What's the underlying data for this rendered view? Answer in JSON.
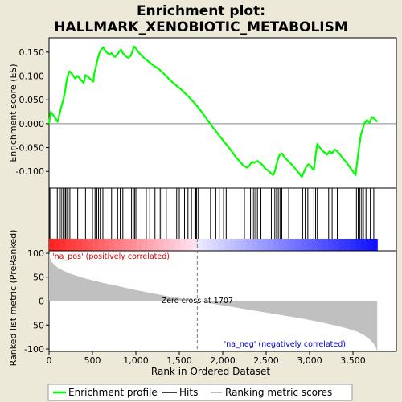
{
  "chart_data": {
    "type": "line",
    "title": "Enrichment plot:",
    "subtitle": "HALLMARK_XENOBIOTIC_METABOLISM",
    "xlabel": "Rank in Ordered Dataset",
    "top_panel": {
      "ylabel": "Enrichment score (ES)",
      "ylim": [
        -0.135,
        0.18
      ],
      "yticks": [
        -0.1,
        -0.05,
        0.0,
        0.05,
        0.1,
        0.15
      ],
      "ytick_labels": [
        "-0.100",
        "-0.050",
        "0.000",
        "0.050",
        "0.100",
        "0.150"
      ],
      "series": [
        {
          "name": "Enrichment profile",
          "color": "#00ff00",
          "x": [
            0,
            20,
            60,
            100,
            120,
            140,
            165,
            185,
            200,
            215,
            235,
            260,
            300,
            330,
            360,
            400,
            420,
            450,
            480,
            510,
            520,
            535,
            550,
            565,
            580,
            600,
            625,
            650,
            690,
            720,
            740,
            760,
            790,
            810,
            830,
            850,
            880,
            910,
            940,
            960,
            980,
            1000,
            1020,
            1040,
            1080,
            1120,
            1160,
            1200,
            1240,
            1280,
            1320,
            1360,
            1400,
            1440,
            1480,
            1520,
            1560,
            1600,
            1640,
            1680,
            1720,
            1760,
            1800,
            1840,
            1880,
            1920,
            1960,
            2000,
            2040,
            2080,
            2120,
            2160,
            2200,
            2240,
            2280,
            2300,
            2320,
            2340,
            2360,
            2380,
            2400,
            2430,
            2460,
            2490,
            2520,
            2550,
            2580,
            2600,
            2620,
            2640,
            2660,
            2680,
            2720,
            2760,
            2800,
            2840,
            2880,
            2910,
            2930,
            2950,
            2970,
            2990,
            3010,
            3030,
            3050,
            3070,
            3090,
            3110,
            3140,
            3170,
            3200,
            3230,
            3260,
            3290,
            3320,
            3350,
            3380,
            3420,
            3460,
            3500,
            3530,
            3550,
            3570,
            3590,
            3610,
            3630,
            3660,
            3690,
            3720,
            3750,
            3780
          ],
          "y": [
            0.0,
            0.025,
            0.015,
            0.004,
            0.02,
            0.035,
            0.05,
            0.068,
            0.088,
            0.1,
            0.11,
            0.105,
            0.095,
            0.1,
            0.093,
            0.085,
            0.102,
            0.098,
            0.093,
            0.088,
            0.105,
            0.115,
            0.128,
            0.138,
            0.148,
            0.155,
            0.16,
            0.152,
            0.145,
            0.148,
            0.142,
            0.14,
            0.145,
            0.152,
            0.155,
            0.148,
            0.142,
            0.138,
            0.142,
            0.152,
            0.162,
            0.158,
            0.152,
            0.148,
            0.14,
            0.134,
            0.128,
            0.122,
            0.118,
            0.112,
            0.105,
            0.098,
            0.09,
            0.084,
            0.078,
            0.072,
            0.065,
            0.058,
            0.05,
            0.042,
            0.034,
            0.024,
            0.014,
            0.004,
            -0.006,
            -0.015,
            -0.025,
            -0.034,
            -0.043,
            -0.052,
            -0.062,
            -0.072,
            -0.08,
            -0.088,
            -0.092,
            -0.09,
            -0.084,
            -0.08,
            -0.082,
            -0.08,
            -0.078,
            -0.082,
            -0.087,
            -0.094,
            -0.098,
            -0.103,
            -0.108,
            -0.1,
            -0.085,
            -0.072,
            -0.064,
            -0.062,
            -0.072,
            -0.079,
            -0.087,
            -0.095,
            -0.104,
            -0.112,
            -0.104,
            -0.095,
            -0.088,
            -0.085,
            -0.088,
            -0.093,
            -0.097,
            -0.065,
            -0.042,
            -0.048,
            -0.055,
            -0.06,
            -0.065,
            -0.058,
            -0.062,
            -0.054,
            -0.058,
            -0.064,
            -0.072,
            -0.08,
            -0.09,
            -0.1,
            -0.108,
            -0.078,
            -0.05,
            -0.025,
            -0.012,
            0.0,
            0.008,
            0.002,
            0.014,
            0.01,
            0.004
          ]
        }
      ]
    },
    "hits": {
      "name": "Hits",
      "color": "#000000",
      "x": [
        10,
        95,
        120,
        140,
        160,
        175,
        190,
        205,
        220,
        240,
        330,
        420,
        500,
        530,
        550,
        570,
        590,
        620,
        720,
        790,
        820,
        850,
        950,
        970,
        985,
        1000,
        1120,
        1160,
        1220,
        1280,
        1300,
        1350,
        1440,
        1470,
        1500,
        1560,
        1600,
        1640,
        1680,
        1690,
        1700,
        1720,
        1860,
        1920,
        1960,
        2010,
        2040,
        2250,
        2320,
        2340,
        2360,
        2380,
        2400,
        2440,
        2560,
        2600,
        2620,
        2640,
        2660,
        2680,
        2760,
        2920,
        2950,
        2980,
        3050,
        3070,
        3090,
        3220,
        3260,
        3320,
        3540,
        3560,
        3580,
        3600,
        3620,
        3650,
        3700,
        3740
      ]
    },
    "lower_panel": {
      "ylabel": "Ranked list metric (PreRanked)",
      "ylim": [
        -105,
        105
      ],
      "yticks": [
        -100,
        -50,
        0,
        50,
        100
      ],
      "series": [
        {
          "name": "Ranking metric scores",
          "color": "#c0c0c0",
          "x": [
            0,
            10,
            30,
            60,
            100,
            160,
            250,
            400,
            600,
            800,
            1000,
            1200,
            1400,
            1600,
            1707,
            1900,
            2100,
            2300,
            2500,
            2700,
            2900,
            3100,
            3300,
            3450,
            3550,
            3620,
            3680,
            3720,
            3750,
            3770,
            3780
          ],
          "y": [
            100,
            90,
            82,
            76,
            70,
            64,
            57,
            48,
            39,
            31,
            23,
            16,
            9,
            3,
            0,
            -6,
            -12,
            -18,
            -24,
            -30,
            -36,
            -43,
            -51,
            -58,
            -64,
            -70,
            -78,
            -85,
            -92,
            -100,
            -105
          ]
        }
      ],
      "annotations": [
        {
          "text": "'na_pos' (positively correlated)",
          "color": "#cc0000"
        },
        {
          "text": "Zero cross at 1707",
          "color": "#000000",
          "x": 1707
        },
        {
          "text": "'na_neg' (negatively correlated)",
          "color": "#0000cc"
        }
      ]
    },
    "xlim": [
      0,
      4000
    ],
    "xticks": [
      0,
      500,
      1000,
      1500,
      2000,
      2500,
      3000,
      3500
    ],
    "xtick_labels": [
      "0",
      "500",
      "1,000",
      "1,500",
      "2,000",
      "2,500",
      "3,000",
      "3,500"
    ],
    "list_size": 3780,
    "legend": {
      "placement": "bottom",
      "entries": [
        "Enrichment profile",
        "Hits",
        "Ranking metric scores"
      ]
    }
  }
}
